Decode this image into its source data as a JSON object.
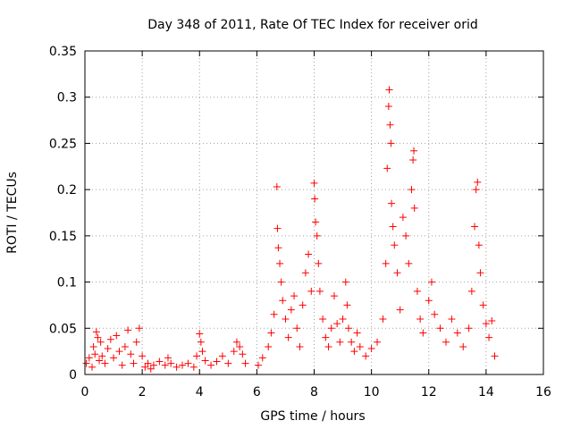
{
  "chart_data": {
    "type": "scatter",
    "title": "Day 348 of 2011, Rate Of TEC Index for receiver orid",
    "xlabel": "GPS time / hours",
    "ylabel": "ROTI / TECUs",
    "xlim": [
      0,
      16
    ],
    "ylim": [
      0,
      0.35
    ],
    "x_ticks": [
      0,
      2,
      4,
      6,
      8,
      10,
      12,
      14,
      16
    ],
    "x_tick_labels": [
      "0",
      "2",
      "4",
      "6",
      "8",
      "10",
      "12",
      "14",
      "16"
    ],
    "y_ticks": [
      0,
      0.05,
      0.1,
      0.15,
      0.2,
      0.25,
      0.3,
      0.35
    ],
    "y_tick_labels": [
      "0",
      "0.05",
      "0.1",
      "0.15",
      "0.2",
      "0.25",
      "0.3",
      "0.35"
    ],
    "grid": true,
    "marker": "+",
    "marker_color": "#ff0000",
    "series": [
      {
        "name": "ROTI",
        "points": [
          [
            0.05,
            0.012
          ],
          [
            0.15,
            0.018
          ],
          [
            0.25,
            0.008
          ],
          [
            0.3,
            0.03
          ],
          [
            0.35,
            0.022
          ],
          [
            0.4,
            0.046
          ],
          [
            0.45,
            0.04
          ],
          [
            0.5,
            0.015
          ],
          [
            0.55,
            0.035
          ],
          [
            0.6,
            0.02
          ],
          [
            0.7,
            0.012
          ],
          [
            0.8,
            0.028
          ],
          [
            0.9,
            0.038
          ],
          [
            1.0,
            0.018
          ],
          [
            1.1,
            0.042
          ],
          [
            1.2,
            0.025
          ],
          [
            1.3,
            0.01
          ],
          [
            1.4,
            0.03
          ],
          [
            1.5,
            0.048
          ],
          [
            1.6,
            0.022
          ],
          [
            1.7,
            0.012
          ],
          [
            1.8,
            0.035
          ],
          [
            1.9,
            0.05
          ],
          [
            2.0,
            0.02
          ],
          [
            2.1,
            0.008
          ],
          [
            2.2,
            0.012
          ],
          [
            2.3,
            0.006
          ],
          [
            2.4,
            0.01
          ],
          [
            2.6,
            0.014
          ],
          [
            2.8,
            0.01
          ],
          [
            2.9,
            0.018
          ],
          [
            3.0,
            0.012
          ],
          [
            3.2,
            0.008
          ],
          [
            3.4,
            0.01
          ],
          [
            3.6,
            0.012
          ],
          [
            3.8,
            0.008
          ],
          [
            3.9,
            0.02
          ],
          [
            4.0,
            0.044
          ],
          [
            4.05,
            0.035
          ],
          [
            4.1,
            0.025
          ],
          [
            4.2,
            0.015
          ],
          [
            4.4,
            0.01
          ],
          [
            4.6,
            0.014
          ],
          [
            4.8,
            0.02
          ],
          [
            5.0,
            0.012
          ],
          [
            5.2,
            0.025
          ],
          [
            5.3,
            0.035
          ],
          [
            5.4,
            0.03
          ],
          [
            5.5,
            0.022
          ],
          [
            5.6,
            0.012
          ],
          [
            6.05,
            0.01
          ],
          [
            6.2,
            0.018
          ],
          [
            6.4,
            0.03
          ],
          [
            6.5,
            0.045
          ],
          [
            6.6,
            0.065
          ],
          [
            6.7,
            0.203
          ],
          [
            6.72,
            0.158
          ],
          [
            6.75,
            0.137
          ],
          [
            6.8,
            0.12
          ],
          [
            6.85,
            0.1
          ],
          [
            6.9,
            0.08
          ],
          [
            7.0,
            0.06
          ],
          [
            7.1,
            0.04
          ],
          [
            7.2,
            0.07
          ],
          [
            7.3,
            0.085
          ],
          [
            7.4,
            0.05
          ],
          [
            7.5,
            0.03
          ],
          [
            7.6,
            0.075
          ],
          [
            7.7,
            0.11
          ],
          [
            7.8,
            0.13
          ],
          [
            7.9,
            0.09
          ],
          [
            8.0,
            0.207
          ],
          [
            8.02,
            0.19
          ],
          [
            8.05,
            0.165
          ],
          [
            8.1,
            0.15
          ],
          [
            8.15,
            0.12
          ],
          [
            8.2,
            0.09
          ],
          [
            8.3,
            0.06
          ],
          [
            8.4,
            0.04
          ],
          [
            8.5,
            0.03
          ],
          [
            8.6,
            0.05
          ],
          [
            8.7,
            0.085
          ],
          [
            8.8,
            0.055
          ],
          [
            8.9,
            0.035
          ],
          [
            9.0,
            0.06
          ],
          [
            9.1,
            0.1
          ],
          [
            9.15,
            0.075
          ],
          [
            9.2,
            0.05
          ],
          [
            9.3,
            0.035
          ],
          [
            9.4,
            0.025
          ],
          [
            9.5,
            0.045
          ],
          [
            9.6,
            0.03
          ],
          [
            9.8,
            0.02
          ],
          [
            10.0,
            0.028
          ],
          [
            10.2,
            0.035
          ],
          [
            10.4,
            0.06
          ],
          [
            10.5,
            0.12
          ],
          [
            10.55,
            0.223
          ],
          [
            10.6,
            0.29
          ],
          [
            10.62,
            0.308
          ],
          [
            10.65,
            0.27
          ],
          [
            10.68,
            0.25
          ],
          [
            10.7,
            0.185
          ],
          [
            10.75,
            0.16
          ],
          [
            10.8,
            0.14
          ],
          [
            10.9,
            0.11
          ],
          [
            11.0,
            0.07
          ],
          [
            11.1,
            0.17
          ],
          [
            11.2,
            0.15
          ],
          [
            11.3,
            0.12
          ],
          [
            11.4,
            0.2
          ],
          [
            11.45,
            0.232
          ],
          [
            11.48,
            0.242
          ],
          [
            11.5,
            0.18
          ],
          [
            11.6,
            0.09
          ],
          [
            11.7,
            0.06
          ],
          [
            11.8,
            0.045
          ],
          [
            12.0,
            0.08
          ],
          [
            12.1,
            0.1
          ],
          [
            12.2,
            0.065
          ],
          [
            12.4,
            0.05
          ],
          [
            12.6,
            0.035
          ],
          [
            12.8,
            0.06
          ],
          [
            13.0,
            0.045
          ],
          [
            13.2,
            0.03
          ],
          [
            13.4,
            0.05
          ],
          [
            13.5,
            0.09
          ],
          [
            13.6,
            0.16
          ],
          [
            13.65,
            0.2
          ],
          [
            13.7,
            0.208
          ],
          [
            13.75,
            0.14
          ],
          [
            13.8,
            0.11
          ],
          [
            13.9,
            0.075
          ],
          [
            14.0,
            0.055
          ],
          [
            14.1,
            0.04
          ],
          [
            14.2,
            0.058
          ],
          [
            14.3,
            0.02
          ]
        ]
      }
    ]
  }
}
